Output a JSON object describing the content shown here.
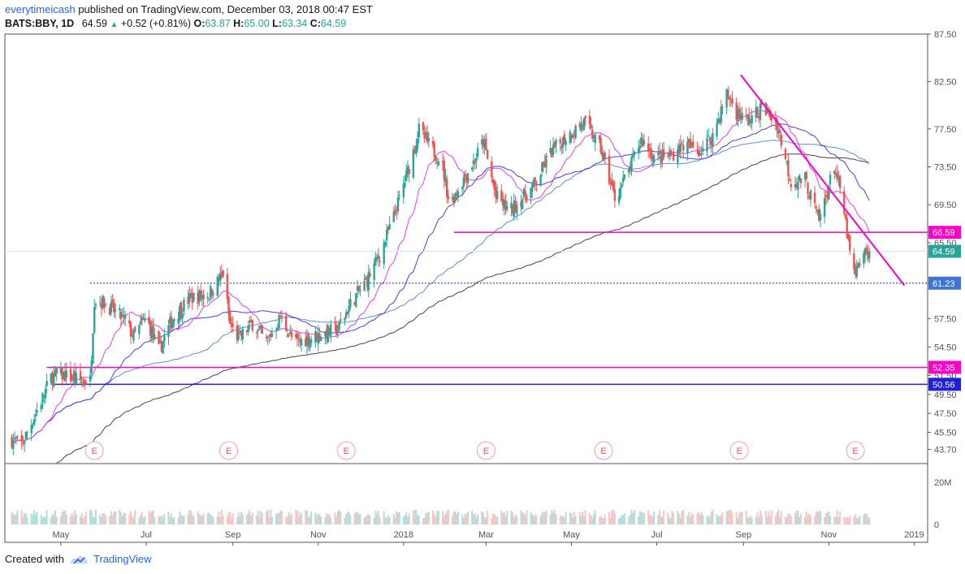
{
  "header": {
    "user": "everytimeicash",
    "published_text": "published on TradingView.com, December 03, 2018 00:47 EST",
    "symbol": "BATS:BBY, 1D",
    "last": "64.59",
    "change": "+0.52 (+0.81%)",
    "o_label": "O:",
    "o_value": "63.87",
    "h_label": "H:",
    "h_value": "65.00",
    "l_label": "L:",
    "l_value": "63.34",
    "c_label": "C:",
    "c_value": "64.59"
  },
  "footer": {
    "created_with": "Created with",
    "brand": "TradingView"
  },
  "colors": {
    "up": "#26a69a",
    "down": "#ef5350",
    "magenta": "#ff00c8",
    "blue": "#1f1fdd",
    "ma_magenta": "#e040fb",
    "ma_purple": "#4a3ae0",
    "ma_lightblue": "#5b8fd6",
    "ma_dark": "#444444",
    "price_line": "#d0eef0"
  },
  "chart_data": {
    "type": "candlestick",
    "symbol": "BATS:BBY",
    "interval": "1D",
    "y_range": [
      42.2,
      87.5
    ],
    "y_ticks": [
      "87.50",
      "82.50",
      "77.50",
      "73.50",
      "69.50",
      "65.50",
      "61.23",
      "57.50",
      "54.50",
      "51.50",
      "49.50",
      "47.50",
      "45.50",
      "43.70"
    ],
    "x_ticks": [
      "May",
      "Jul",
      "Sep",
      "Nov",
      "2018",
      "Mar",
      "May",
      "Jul",
      "Sep",
      "Nov",
      "2019"
    ],
    "volume_ticks": [
      "20M",
      "0"
    ],
    "price_anchors": [
      [
        "2017-03-27",
        44.7
      ],
      [
        "2017-04-03",
        44.2
      ],
      [
        "2017-04-10",
        46.5
      ],
      [
        "2017-04-17",
        48.8
      ],
      [
        "2017-04-24",
        51.3
      ],
      [
        "2017-05-01",
        51.6
      ],
      [
        "2017-05-08",
        51.3
      ],
      [
        "2017-05-15",
        50.9
      ],
      [
        "2017-05-22",
        51.0
      ],
      [
        "2017-05-25",
        59.5
      ],
      [
        "2017-06-01",
        59.2
      ],
      [
        "2017-06-15",
        57.4
      ],
      [
        "2017-06-22",
        55.6
      ],
      [
        "2017-07-01",
        57.6
      ],
      [
        "2017-07-10",
        54.1
      ],
      [
        "2017-07-20",
        57.5
      ],
      [
        "2017-08-01",
        59.6
      ],
      [
        "2017-08-15",
        60.1
      ],
      [
        "2017-08-25",
        62.2
      ],
      [
        "2017-08-30",
        56.8
      ],
      [
        "2017-09-05",
        55.4
      ],
      [
        "2017-09-15",
        57.0
      ],
      [
        "2017-09-25",
        55.0
      ],
      [
        "2017-10-05",
        57.6
      ],
      [
        "2017-10-15",
        54.9
      ],
      [
        "2017-10-25",
        55.4
      ],
      [
        "2017-11-05",
        55.9
      ],
      [
        "2017-11-15",
        56.4
      ],
      [
        "2017-11-25",
        59.3
      ],
      [
        "2017-12-05",
        61.3
      ],
      [
        "2017-12-15",
        64.2
      ],
      [
        "2017-12-25",
        68.2
      ],
      [
        "2018-01-05",
        73.5
      ],
      [
        "2018-01-12",
        77.4
      ],
      [
        "2018-01-20",
        75.6
      ],
      [
        "2018-01-28",
        74.2
      ],
      [
        "2018-02-03",
        69.5
      ],
      [
        "2018-02-10",
        71.5
      ],
      [
        "2018-02-20",
        74.0
      ],
      [
        "2018-02-27",
        76.2
      ],
      [
        "2018-03-08",
        70.4
      ],
      [
        "2018-03-18",
        68.8
      ],
      [
        "2018-03-25",
        69.9
      ],
      [
        "2018-04-05",
        71.6
      ],
      [
        "2018-04-15",
        74.8
      ],
      [
        "2018-04-28",
        76.8
      ],
      [
        "2018-05-10",
        78.2
      ],
      [
        "2018-05-22",
        75.4
      ],
      [
        "2018-06-01",
        70.2
      ],
      [
        "2018-06-10",
        72.7
      ],
      [
        "2018-06-20",
        76.4
      ],
      [
        "2018-06-30",
        74.4
      ],
      [
        "2018-07-10",
        74.6
      ],
      [
        "2018-07-20",
        75.8
      ],
      [
        "2018-08-01",
        75.2
      ],
      [
        "2018-08-10",
        76.8
      ],
      [
        "2018-08-20",
        81.2
      ],
      [
        "2018-08-28",
        79.0
      ],
      [
        "2018-09-05",
        78.4
      ],
      [
        "2018-09-15",
        79.8
      ],
      [
        "2018-09-25",
        78.0
      ],
      [
        "2018-10-05",
        71.9
      ],
      [
        "2018-10-15",
        72.2
      ],
      [
        "2018-10-25",
        67.8
      ],
      [
        "2018-11-05",
        73.6
      ],
      [
        "2018-11-12",
        68.6
      ],
      [
        "2018-11-17",
        63.2
      ],
      [
        "2018-11-20",
        62.0
      ],
      [
        "2018-11-24",
        63.9
      ],
      [
        "2018-11-30",
        64.59
      ]
    ],
    "horizontal_levels": [
      {
        "value": 66.59,
        "label": "66.59",
        "style": "solid",
        "color": "#ff00c8"
      },
      {
        "value": 61.23,
        "label": "61.23",
        "style": "dotted",
        "color": "#1f1fdd"
      },
      {
        "value": 52.35,
        "label": "52.35",
        "style": "solid",
        "color": "#ff00c8"
      },
      {
        "value": 50.56,
        "label": "50.56",
        "style": "solid",
        "color": "#1f1fdd"
      }
    ],
    "last_price": {
      "value": 64.59,
      "label": "64.59"
    },
    "trendline": {
      "from": [
        "2018-08-30",
        83.2
      ],
      "to": [
        "2018-12-25",
        61.0
      ],
      "color": "#ff00c8"
    },
    "earnings_markers": {
      "label": "E",
      "dates": [
        "2017-05-25",
        "2017-08-29",
        "2017-11-21",
        "2018-03-01",
        "2018-05-24",
        "2018-08-29",
        "2018-11-20"
      ]
    }
  }
}
